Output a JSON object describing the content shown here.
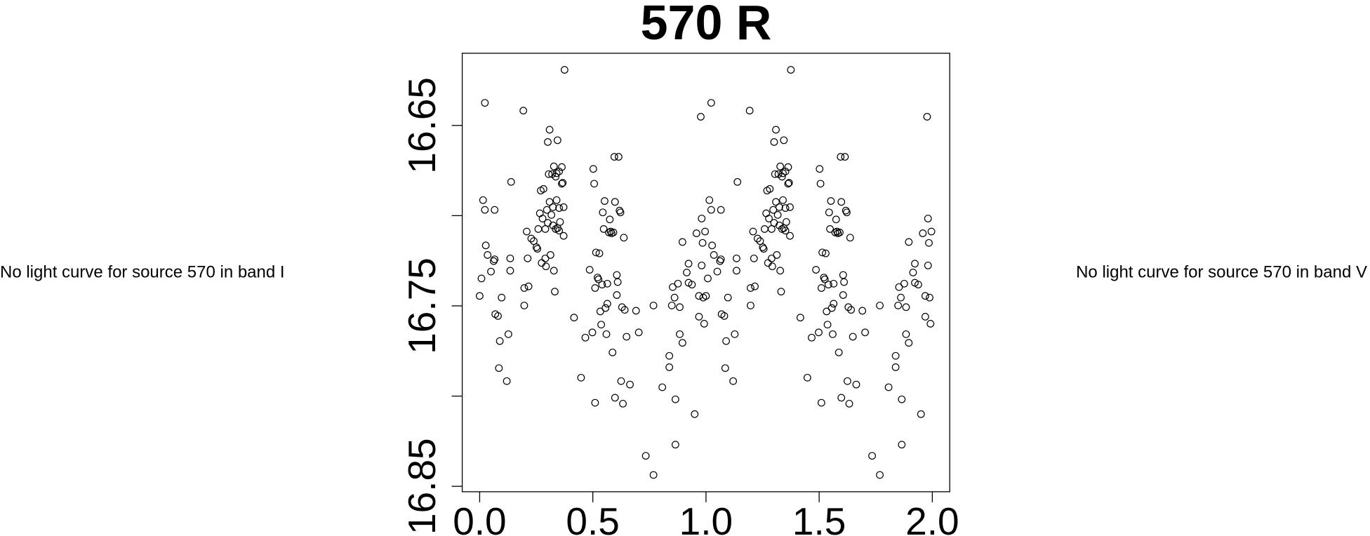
{
  "chart_data": {
    "type": "scatter",
    "title": "570 R",
    "annotations": [
      "No light curve for source 570 in band I",
      "No light curve for source 570 in band V"
    ],
    "color": "#000000",
    "xlim": [
      -0.077,
      2.077
    ],
    "xticks": [
      {
        "value": 0,
        "label": "0.0"
      },
      0.5,
      {
        "value": 1,
        "label": "1.0"
      },
      1.5,
      {
        "value": 2,
        "label": "2.0"
      }
    ],
    "ylim": [
      16.853,
      16.61
    ],
    "yticks": [
      16.65,
      16.75,
      16.85
    ],
    "yticks_unlabeled": [
      16.7,
      16.8
    ],
    "x": [
      0,
      0.008,
      0.015,
      0.023,
      0.023,
      0.027,
      0.035,
      0.05,
      0.062,
      0.066,
      0.066,
      0.069,
      0.081,
      0.085,
      0.089,
      0.097,
      0.12,
      0.127,
      0.135,
      0.135,
      0.139,
      0.193,
      0.197,
      0.197,
      0.208,
      0.212,
      0.216,
      0.228,
      0.239,
      0.251,
      0.255,
      0.259,
      0.266,
      0.27,
      0.274,
      0.278,
      0.282,
      0.29,
      0.29,
      0.293,
      0.297,
      0.301,
      0.301,
      0.305,
      0.309,
      0.309,
      0.313,
      0.317,
      0.32,
      0.324,
      0.324,
      0.328,
      0.328,
      0.332,
      0.336,
      0.336,
      0.34,
      0.34,
      0.344,
      0.344,
      0.351,
      0.351,
      0.351,
      0.355,
      0.363,
      0.363,
      0.367,
      0.371,
      0.371,
      0.375,
      0.417,
      0.448,
      0.467,
      0.486,
      0.498,
      0.502,
      0.506,
      0.51,
      0.51,
      0.514,
      0.521,
      0.525,
      0.529,
      0.533,
      0.537,
      0.541,
      0.544,
      0.548,
      0.552,
      0.556,
      0.56,
      0.564,
      0.564,
      0.571,
      0.575,
      0.579,
      0.583,
      0.587,
      0.591,
      0.595,
      0.598,
      0.598,
      0.606,
      0.606,
      0.61,
      0.614,
      0.618,
      0.622,
      0.625,
      0.629,
      0.633,
      0.637,
      0.641,
      0.649,
      0.664,
      0.691,
      0.703,
      0.734,
      0.768,
      0.768,
      0.807,
      0.838,
      0.838,
      0.849,
      0.853,
      0.861,
      0.865,
      0.865,
      0.876,
      0.884,
      0.884,
      0.896,
      0.896,
      0.915,
      0.923,
      0.923,
      0.938,
      0.95,
      0.958,
      0.969,
      0.969,
      0.977,
      0.981,
      0.981,
      0.985,
      0.988,
      0.992,
      0.996,
      1,
      1.008,
      1.015,
      1.023,
      1.023,
      1.027,
      1.035,
      1.05,
      1.062,
      1.066,
      1.066,
      1.069,
      1.081,
      1.085,
      1.089,
      1.097,
      1.12,
      1.127,
      1.135,
      1.135,
      1.139,
      1.193,
      1.197,
      1.197,
      1.208,
      1.212,
      1.216,
      1.228,
      1.239,
      1.251,
      1.255,
      1.259,
      1.266,
      1.27,
      1.274,
      1.278,
      1.282,
      1.29,
      1.29,
      1.293,
      1.297,
      1.301,
      1.301,
      1.305,
      1.309,
      1.309,
      1.313,
      1.317,
      1.32,
      1.324,
      1.324,
      1.328,
      1.328,
      1.332,
      1.336,
      1.336,
      1.34,
      1.34,
      1.344,
      1.344,
      1.351,
      1.351,
      1.351,
      1.355,
      1.363,
      1.363,
      1.367,
      1.371,
      1.371,
      1.375,
      1.417,
      1.448,
      1.467,
      1.486,
      1.498,
      1.502,
      1.506,
      1.51,
      1.51,
      1.514,
      1.521,
      1.525,
      1.529,
      1.533,
      1.537,
      1.541,
      1.544,
      1.548,
      1.552,
      1.556,
      1.56,
      1.564,
      1.564,
      1.571,
      1.575,
      1.579,
      1.583,
      1.587,
      1.591,
      1.595,
      1.598,
      1.598,
      1.606,
      1.606,
      1.61,
      1.614,
      1.618,
      1.622,
      1.625,
      1.629,
      1.633,
      1.637,
      1.641,
      1.649,
      1.664,
      1.691,
      1.703,
      1.734,
      1.768,
      1.768,
      1.807,
      1.838,
      1.838,
      1.849,
      1.853,
      1.861,
      1.865,
      1.865,
      1.876,
      1.884,
      1.884,
      1.896,
      1.896,
      1.915,
      1.923,
      1.923,
      1.938,
      1.95,
      1.958,
      1.969,
      1.969,
      1.977,
      1.981,
      1.981,
      1.985,
      1.988,
      1.992,
      1.996
    ],
    "values": [
      16.7445,
      16.7348,
      16.6914,
      16.6968,
      16.6375,
      16.7165,
      16.7218,
      16.731,
      16.7252,
      16.7242,
      16.6968,
      16.7546,
      16.7556,
      16.7845,
      16.7695,
      16.7454,
      16.7917,
      16.7657,
      16.7237,
      16.7305,
      16.6813,
      16.6418,
      16.7401,
      16.7498,
      16.7088,
      16.7237,
      16.7392,
      16.7127,
      16.7141,
      16.7175,
      16.7184,
      16.7074,
      16.6987,
      16.6861,
      16.7262,
      16.7016,
      16.6852,
      16.7237,
      16.7074,
      16.7281,
      16.6968,
      16.704,
      16.6592,
      16.677,
      16.6924,
      16.6524,
      16.7218,
      16.6996,
      16.677,
      16.6953,
      16.7054,
      16.7305,
      16.6727,
      16.7421,
      16.7074,
      16.6784,
      16.6914,
      16.6765,
      16.7069,
      16.6582,
      16.6755,
      16.6958,
      16.7083,
      16.7035,
      16.6823,
      16.6731,
      16.6818,
      16.7112,
      16.6953,
      16.6192,
      16.7565,
      16.7898,
      16.7676,
      16.73,
      16.7647,
      16.6741,
      16.6823,
      16.8037,
      16.7401,
      16.7204,
      16.7343,
      16.7353,
      16.7209,
      16.7531,
      16.7604,
      16.7382,
      16.6982,
      16.7074,
      16.6919,
      16.7512,
      16.7657,
      16.7488,
      16.7377,
      16.7093,
      16.7021,
      16.7088,
      16.7098,
      16.7758,
      16.7093,
      16.6674,
      16.6924,
      16.8009,
      16.7329,
      16.744,
      16.7368,
      16.6674,
      16.6972,
      16.6982,
      16.7917,
      16.7507,
      16.8042,
      16.7122,
      16.7522,
      16.7671,
      16.7936,
      16.7527,
      16.7647,
      16.8331,
      16.8437,
      16.7498,
      16.7951,
      16.7777,
      16.784,
      16.7498,
      16.7396,
      16.7454,
      16.8018,
      16.8269,
      16.7377,
      16.7657,
      16.7507,
      16.7705,
      16.7146,
      16.7315,
      16.7266,
      16.7372,
      16.7382,
      16.81,
      16.7098,
      16.7445,
      16.756,
      16.6452,
      16.7276,
      16.7016,
      16.7151,
      16.7454,
      16.7599,
      16.7088,
      16.7445,
      16.7348,
      16.6914,
      16.6968,
      16.6375,
      16.7165,
      16.7218,
      16.731,
      16.7252,
      16.7242,
      16.6968,
      16.7546,
      16.7556,
      16.7845,
      16.7695,
      16.7454,
      16.7917,
      16.7657,
      16.7237,
      16.7305,
      16.6813,
      16.6418,
      16.7401,
      16.7498,
      16.7088,
      16.7237,
      16.7392,
      16.7127,
      16.7141,
      16.7175,
      16.7184,
      16.7074,
      16.6987,
      16.6861,
      16.7262,
      16.7016,
      16.6852,
      16.7237,
      16.7074,
      16.7281,
      16.6968,
      16.704,
      16.6592,
      16.677,
      16.6924,
      16.6524,
      16.7218,
      16.6996,
      16.677,
      16.6953,
      16.7054,
      16.7305,
      16.6727,
      16.7421,
      16.7074,
      16.6784,
      16.6914,
      16.6765,
      16.7069,
      16.6582,
      16.6755,
      16.6958,
      16.7083,
      16.7035,
      16.6823,
      16.6731,
      16.6818,
      16.7112,
      16.6953,
      16.6192,
      16.7565,
      16.7898,
      16.7676,
      16.73,
      16.7647,
      16.6741,
      16.6823,
      16.8037,
      16.7401,
      16.7204,
      16.7343,
      16.7353,
      16.7209,
      16.7531,
      16.7604,
      16.7382,
      16.6982,
      16.7074,
      16.6919,
      16.7512,
      16.7657,
      16.7488,
      16.7377,
      16.7093,
      16.7021,
      16.7088,
      16.7098,
      16.7758,
      16.7093,
      16.6674,
      16.6924,
      16.8009,
      16.7329,
      16.744,
      16.7368,
      16.6674,
      16.6972,
      16.6982,
      16.7917,
      16.7507,
      16.8042,
      16.7122,
      16.7522,
      16.7671,
      16.7936,
      16.7527,
      16.7647,
      16.8331,
      16.8437,
      16.7498,
      16.7951,
      16.7777,
      16.784,
      16.7498,
      16.7396,
      16.7454,
      16.8018,
      16.8269,
      16.7377,
      16.7657,
      16.7507,
      16.7705,
      16.7146,
      16.7315,
      16.7266,
      16.7372,
      16.7382,
      16.81,
      16.7098,
      16.7445,
      16.756,
      16.6452,
      16.7276,
      16.7016,
      16.7151,
      16.7454,
      16.7599,
      16.7088
    ]
  }
}
